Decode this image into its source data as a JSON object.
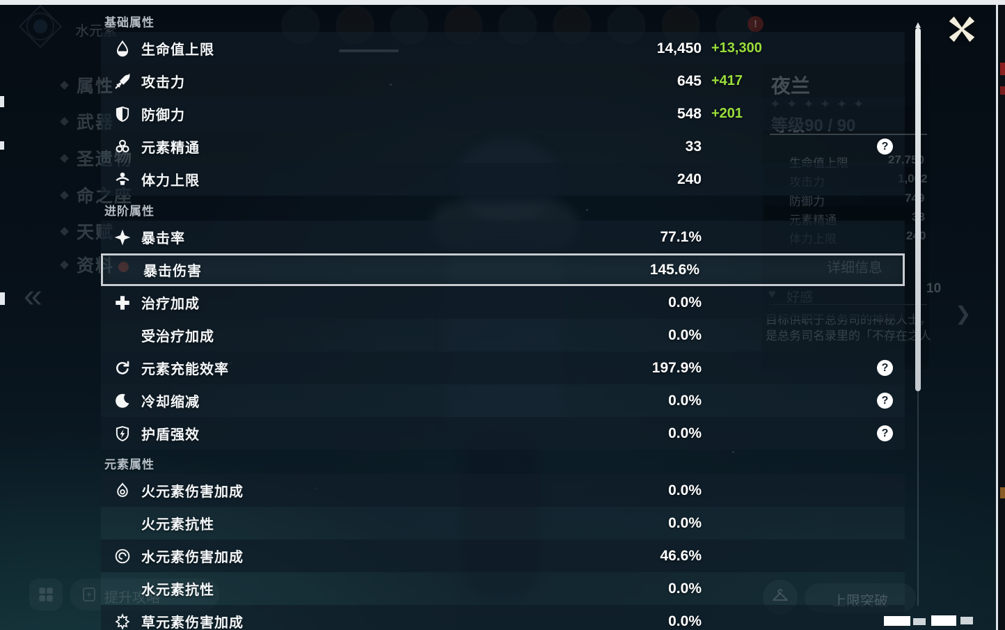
{
  "colors": {
    "bonus_green": "#9ade3b",
    "selected_border": "#c6ccd1",
    "help_circle": "#ffffff",
    "scrollbar": "#d4d9dc",
    "close_icon": "#f2eddc"
  },
  "overlay": {
    "sections": [
      {
        "title": "基础属性",
        "rows": [
          {
            "icon": "hp-icon",
            "label": "生命值上限",
            "value": "14,450",
            "bonus": "+13,300",
            "help": false,
            "selected": false
          },
          {
            "icon": "atk-icon",
            "label": "攻击力",
            "value": "645",
            "bonus": "+417",
            "help": false,
            "selected": false
          },
          {
            "icon": "def-icon",
            "label": "防御力",
            "value": "548",
            "bonus": "+201",
            "help": false,
            "selected": false
          },
          {
            "icon": "elemental-mastery-icon",
            "label": "元素精通",
            "value": "33",
            "bonus": null,
            "help": true,
            "selected": false
          },
          {
            "icon": "stamina-icon",
            "label": "体力上限",
            "value": "240",
            "bonus": null,
            "help": false,
            "selected": false
          }
        ]
      },
      {
        "title": "进阶属性",
        "rows": [
          {
            "icon": "crit-rate-icon",
            "label": "暴击率",
            "value": "77.1%",
            "bonus": null,
            "help": false,
            "selected": false
          },
          {
            "icon": null,
            "label": "暴击伤害",
            "value": "145.6%",
            "bonus": null,
            "help": false,
            "selected": true
          },
          {
            "icon": "healing-bonus-icon",
            "label": "治疗加成",
            "value": "0.0%",
            "bonus": null,
            "help": false,
            "selected": false
          },
          {
            "icon": null,
            "label": "受治疗加成",
            "value": "0.0%",
            "bonus": null,
            "help": false,
            "selected": false
          },
          {
            "icon": "energy-recharge-icon",
            "label": "元素充能效率",
            "value": "197.9%",
            "bonus": null,
            "help": true,
            "selected": false
          },
          {
            "icon": "cooldown-icon",
            "label": "冷却缩减",
            "value": "0.0%",
            "bonus": null,
            "help": true,
            "selected": false
          },
          {
            "icon": "shield-strength-icon",
            "label": "护盾强效",
            "value": "0.0%",
            "bonus": null,
            "help": true,
            "selected": false
          }
        ]
      },
      {
        "title": "元素属性",
        "rows": [
          {
            "icon": "pyro-icon",
            "label": "火元素伤害加成",
            "value": "0.0%",
            "bonus": null,
            "help": false,
            "selected": false
          },
          {
            "icon": null,
            "label": "火元素抗性",
            "value": "0.0%",
            "bonus": null,
            "help": false,
            "selected": false
          },
          {
            "icon": "hydro-icon",
            "label": "水元素伤害加成",
            "value": "46.6%",
            "bonus": null,
            "help": false,
            "selected": false
          },
          {
            "icon": null,
            "label": "水元素抗性",
            "value": "0.0%",
            "bonus": null,
            "help": false,
            "selected": false
          },
          {
            "icon": "dendro-icon",
            "label": "草元素伤害加成",
            "value": "0.0%",
            "bonus": null,
            "help": false,
            "selected": false
          }
        ]
      }
    ],
    "help_glyph": "?"
  },
  "background": {
    "element_label": "水元素",
    "nav_items": [
      "属性",
      "武器",
      "圣遗物",
      "命之座",
      "天赋",
      "资料"
    ],
    "collapse_glyph": "«",
    "detail_chevron_glyph": "❯",
    "character": {
      "name": "夜兰",
      "stars": "✦✦✦✦✦✦",
      "level_label": "等级90 / 90",
      "stats": [
        {
          "label": "生命值上限",
          "value": "27,750"
        },
        {
          "label": "攻击力",
          "value": "1,062"
        },
        {
          "label": "防御力",
          "value": "749"
        },
        {
          "label": "元素精通",
          "value": "33"
        },
        {
          "label": "体力上限",
          "value": "240"
        }
      ],
      "detail_button": "详细信息",
      "friendship_label": "好感",
      "friendship_heart": "♥",
      "friendship_level": "10",
      "description_lines": [
        "目标供职于总务司的神秘人士，却又",
        "是总务司名录里的「不存在之人」。"
      ]
    },
    "bottom": {
      "improve_button": "提升攻略",
      "limit_break_button": "上限突破"
    },
    "avatar_badge_glyph": "!"
  }
}
